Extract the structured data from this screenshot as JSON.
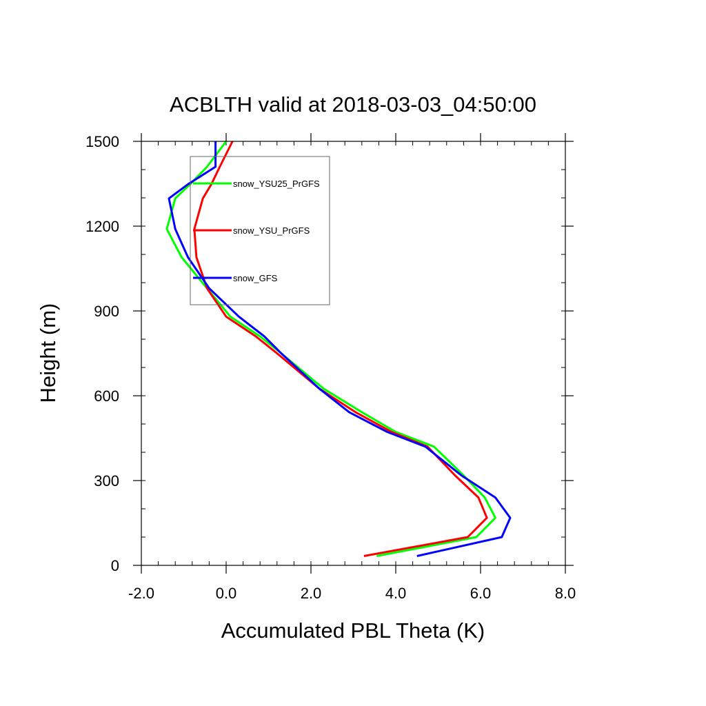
{
  "chart_data": {
    "type": "line",
    "title": "ACBLTH valid at 2018-03-03_04:50:00",
    "xlabel": "Accumulated PBL Theta (K)",
    "ylabel": "Height (m)",
    "xlim": [
      -2.0,
      8.0
    ],
    "ylim": [
      0,
      1500
    ],
    "xticks": [
      -2.0,
      0.0,
      2.0,
      4.0,
      6.0,
      8.0
    ],
    "xtick_labels": [
      "-2.0",
      "0.0",
      "2.0",
      "4.0",
      "6.0",
      "8.0"
    ],
    "yticks": [
      0,
      300,
      600,
      900,
      1200,
      1500
    ],
    "ytick_labels": [
      "0",
      "300",
      "600",
      "900",
      "1200",
      "1500"
    ],
    "grid": false,
    "legend_position": "top-left",
    "series": [
      {
        "name": "snow_YSU25_PrGFS",
        "color": "#00ff00",
        "points": [
          [
            3.55,
            33
          ],
          [
            5.9,
            100
          ],
          [
            6.35,
            168
          ],
          [
            6.1,
            240
          ],
          [
            5.6,
            318
          ],
          [
            4.9,
            420
          ],
          [
            4.0,
            472
          ],
          [
            3.2,
            542
          ],
          [
            2.3,
            625
          ],
          [
            1.3,
            750
          ],
          [
            0.8,
            810
          ],
          [
            0.1,
            880
          ],
          [
            -0.45,
            980
          ],
          [
            -1.05,
            1090
          ],
          [
            -1.4,
            1190
          ],
          [
            -1.2,
            1298
          ],
          [
            -0.85,
            1348
          ],
          [
            -0.45,
            1410
          ],
          [
            0.0,
            1500
          ]
        ]
      },
      {
        "name": "snow_YSU_PrGFS",
        "color": "#ff0000",
        "points": [
          [
            3.25,
            33
          ],
          [
            5.7,
            100
          ],
          [
            6.15,
            168
          ],
          [
            5.95,
            240
          ],
          [
            5.4,
            318
          ],
          [
            4.75,
            420
          ],
          [
            3.9,
            472
          ],
          [
            3.05,
            542
          ],
          [
            2.2,
            625
          ],
          [
            1.2,
            750
          ],
          [
            0.7,
            810
          ],
          [
            0.0,
            880
          ],
          [
            -0.45,
            980
          ],
          [
            -0.7,
            1090
          ],
          [
            -0.75,
            1190
          ],
          [
            -0.55,
            1298
          ],
          [
            -0.35,
            1348
          ],
          [
            -0.15,
            1410
          ],
          [
            0.15,
            1500
          ]
        ]
      },
      {
        "name": "snow_GFS",
        "color": "#0000ff",
        "points": [
          [
            4.5,
            33
          ],
          [
            6.5,
            100
          ],
          [
            6.7,
            168
          ],
          [
            6.35,
            240
          ],
          [
            5.55,
            318
          ],
          [
            4.7,
            420
          ],
          [
            3.8,
            472
          ],
          [
            2.9,
            542
          ],
          [
            2.2,
            625
          ],
          [
            1.3,
            750
          ],
          [
            0.9,
            810
          ],
          [
            0.3,
            880
          ],
          [
            -0.4,
            980
          ],
          [
            -0.9,
            1090
          ],
          [
            -1.2,
            1190
          ],
          [
            -1.35,
            1298
          ],
          [
            -0.9,
            1348
          ],
          [
            -0.25,
            1410
          ],
          [
            -0.25,
            1500
          ]
        ]
      }
    ]
  }
}
